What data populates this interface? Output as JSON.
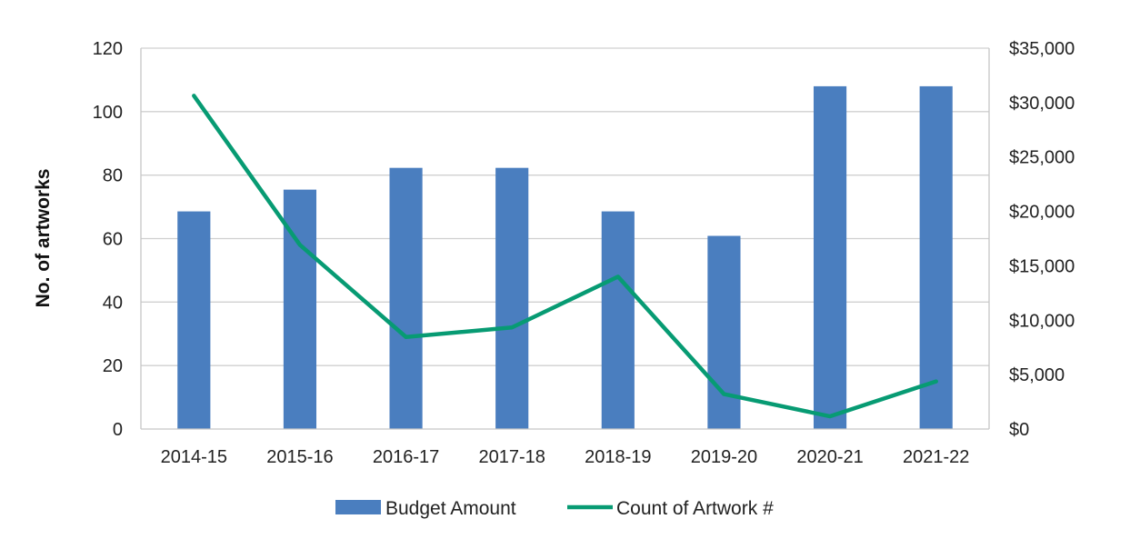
{
  "chart_data": {
    "type": "bar",
    "title": "",
    "xlabel": "",
    "ylabel": "No. of artworks",
    "y2label": "",
    "categories": [
      "2014-15",
      "2015-16",
      "2016-17",
      "2017-18",
      "2018-19",
      "2019-20",
      "2020-21",
      "2021-22"
    ],
    "series": [
      {
        "name": "Budget Amount",
        "type": "bar",
        "axis": "right",
        "color": "#4A7EBF",
        "values": [
          20000,
          22000,
          24000,
          24000,
          20000,
          17750,
          31500,
          31500
        ]
      },
      {
        "name": "Count of Artwork #",
        "type": "line",
        "axis": "left",
        "color": "#079B73",
        "values": [
          105,
          58,
          29,
          32,
          48,
          11,
          4,
          15
        ]
      }
    ],
    "ylim_left": [
      0,
      120
    ],
    "yticks_left": [
      0,
      20,
      40,
      60,
      80,
      100,
      120
    ],
    "yticklabels_left": [
      "0",
      "20",
      "40",
      "60",
      "80",
      "100",
      "120"
    ],
    "ylim_right": [
      0,
      35000
    ],
    "yticks_right": [
      0,
      5000,
      10000,
      15000,
      20000,
      25000,
      30000,
      35000
    ],
    "yticklabels_right": [
      "$0",
      "$5,000",
      "$10,000",
      "$15,000",
      "$20,000",
      "$25,000",
      "$30,000",
      "$35,000"
    ],
    "grid": true,
    "legend_position": "bottom"
  }
}
